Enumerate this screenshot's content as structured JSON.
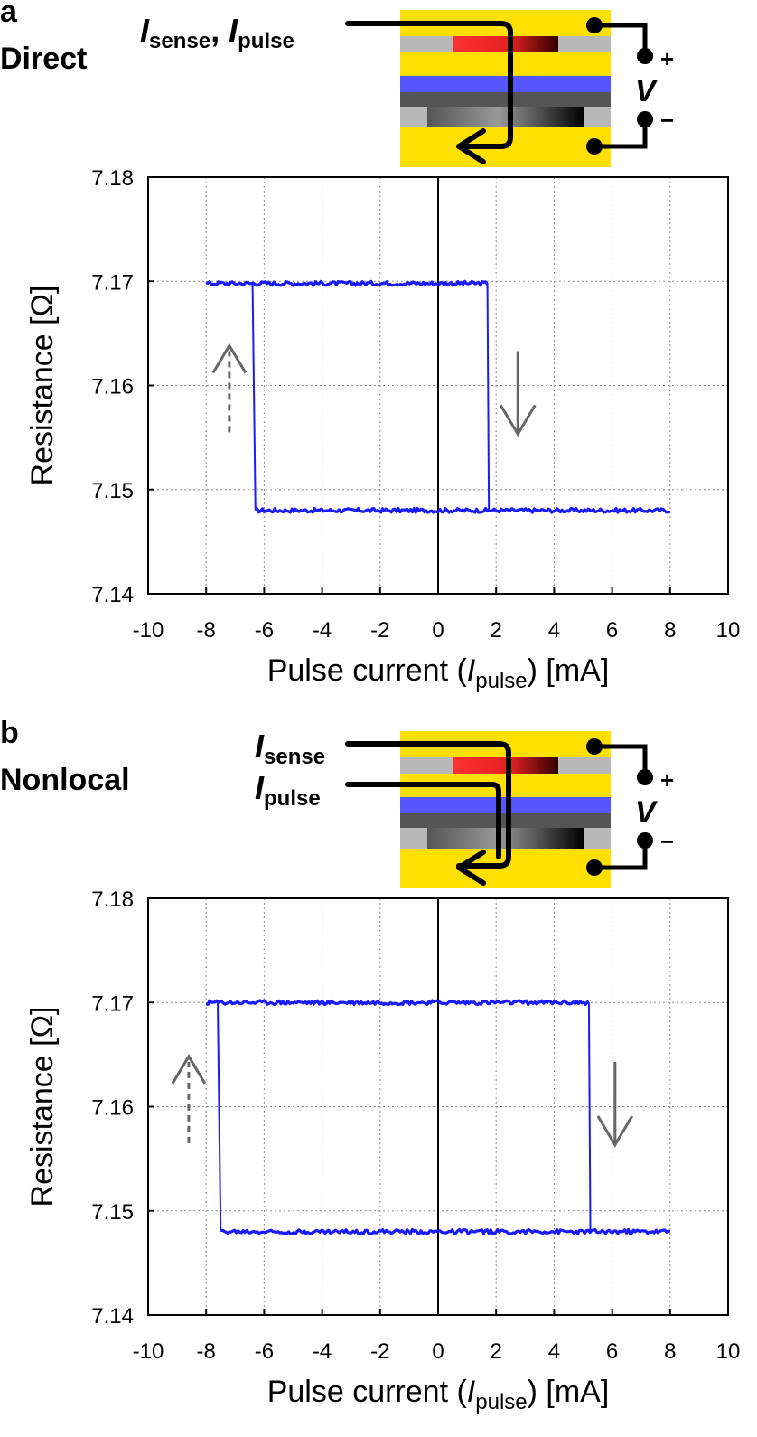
{
  "chart_data": [
    {
      "type": "line",
      "panel_letter": "a",
      "panel_title": "Direct",
      "schematic_labels": {
        "current_main": "I",
        "current_sub1": "sense",
        "sep": ",",
        "current_main2": "I",
        "current_sub2": "pulse",
        "voltage": "V",
        "plus": "+",
        "minus": "−"
      },
      "xlabel": {
        "prefix": "Pulse current (",
        "var": "I",
        "sub": "pulse",
        "suffix": ") [mA]"
      },
      "ylabel": "Resistance [Ω]",
      "xlim": [
        -10,
        10
      ],
      "ylim": [
        7.14,
        7.18
      ],
      "xticks": [
        -10,
        -8,
        -6,
        -4,
        -2,
        0,
        2,
        4,
        6,
        8,
        10
      ],
      "yticks": [
        7.14,
        7.15,
        7.16,
        7.17,
        7.18
      ],
      "grid": true,
      "series_color": "#1a1aff",
      "high_resistance": 7.1698,
      "low_resistance": 7.148,
      "sweep_range": [
        -8,
        8
      ],
      "switch_to_high_at": -6.4,
      "switch_to_low_at": 1.7,
      "annotations": [
        {
          "type": "arrow-up-dashed",
          "x": -7.2,
          "y_from": 7.1555,
          "y_to": 7.1633
        },
        {
          "type": "arrow-down",
          "x": 2.75,
          "y_from": 7.1633,
          "y_to": 7.1555
        }
      ]
    },
    {
      "type": "line",
      "panel_letter": "b",
      "panel_title": "Nonlocal",
      "schematic_labels": {
        "current_main": "I",
        "current_sub1": "sense",
        "current_main2": "I",
        "current_sub2": "pulse",
        "voltage": "V",
        "plus": "+",
        "minus": "−"
      },
      "xlabel": {
        "prefix": "Pulse current (",
        "var": "I",
        "sub": "pulse",
        "suffix": ") [mA]"
      },
      "ylabel": "Resistance [Ω]",
      "xlim": [
        -10,
        10
      ],
      "ylim": [
        7.14,
        7.18
      ],
      "xticks": [
        -10,
        -8,
        -6,
        -4,
        -2,
        0,
        2,
        4,
        6,
        8,
        10
      ],
      "yticks": [
        7.14,
        7.15,
        7.16,
        7.17,
        7.18
      ],
      "grid": true,
      "series_color": "#1a1aff",
      "high_resistance": 7.17,
      "low_resistance": 7.148,
      "sweep_range": [
        -8,
        8
      ],
      "switch_to_high_at": -7.6,
      "switch_to_low_at": 5.2,
      "annotations": [
        {
          "type": "arrow-up-dashed",
          "x": -8.6,
          "y_from": 7.1565,
          "y_to": 7.1643
        },
        {
          "type": "arrow-down",
          "x": 6.1,
          "y_from": 7.1643,
          "y_to": 7.1565
        }
      ]
    }
  ]
}
